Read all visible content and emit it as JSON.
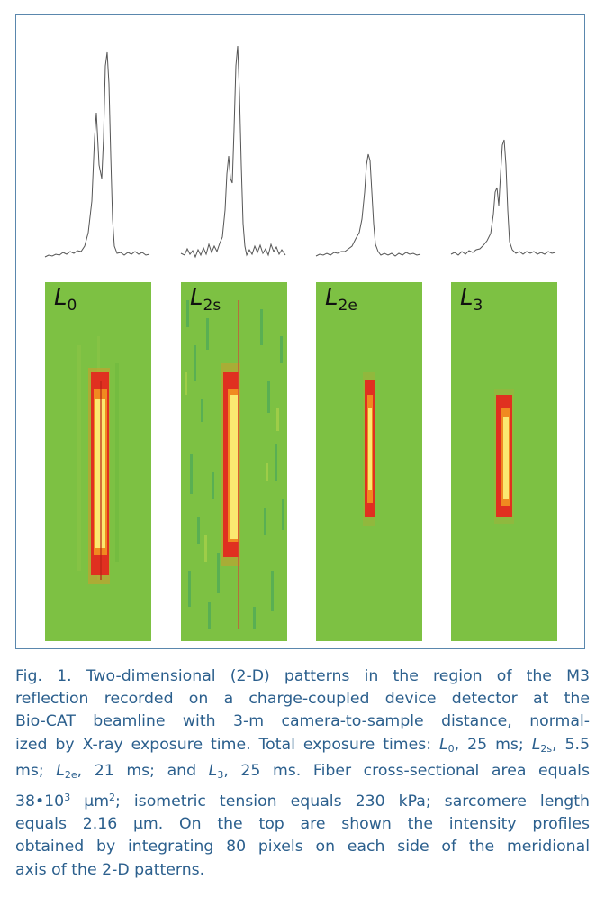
{
  "figure": {
    "panels": [
      {
        "id": "L0",
        "label": "L",
        "subscript": "0"
      },
      {
        "id": "L2s",
        "label": "L",
        "subscript": "2s"
      },
      {
        "id": "L2e",
        "label": "L",
        "subscript": "2e"
      },
      {
        "id": "L3",
        "label": "L",
        "subscript": "3"
      }
    ],
    "colors": {
      "background": "#7dc143",
      "frame": "#5a87ad",
      "caption_text": "#2b5f8d",
      "profile_line": "#555555",
      "hot_red": "#e03020",
      "hot_orange": "#f08a20",
      "hot_yellow": "#fbe870"
    }
  },
  "caption": {
    "lines": [
      [
        {
          "t": "Fig. 1. Two-dimensional (2-D) patterns in the region of the M3"
        }
      ],
      [
        {
          "t": "reflection recorded on a charge-coupled device detector at the"
        }
      ],
      [
        {
          "t": "Bio-CAT beamline with 3-m camera-to-sample distance, normal-"
        }
      ],
      [
        {
          "t": "ized by X-ray exposure time. Total exposure times: "
        },
        {
          "t": "L",
          "s": "i"
        },
        {
          "t": "0",
          "s": "sub"
        },
        {
          "t": ", 25 ms; "
        },
        {
          "t": "L",
          "s": "i"
        },
        {
          "t": "2s",
          "s": "sub"
        },
        {
          "t": ", 5.5"
        }
      ],
      [
        {
          "t": "ms; "
        },
        {
          "t": "L",
          "s": "i"
        },
        {
          "t": "2e",
          "s": "sub"
        },
        {
          "t": ", 21 ms; and "
        },
        {
          "t": "L",
          "s": "i"
        },
        {
          "t": "3",
          "s": "sub"
        },
        {
          "t": ", 25 ms. Fiber cross-sectional area equals"
        }
      ],
      [
        {
          "t": "38•10"
        },
        {
          "t": "3",
          "s": "sup"
        },
        {
          "t": " µm"
        },
        {
          "t": "2",
          "s": "sup"
        },
        {
          "t": "; isometric tension equals 230 kPa; sarcomere length"
        }
      ],
      [
        {
          "t": "equals 2.16 µm.  On the top are shown the intensity profiles"
        }
      ],
      [
        {
          "t": "obtained by integrating 80 pixels on each side of the meridional"
        }
      ],
      [
        {
          "t": "axis of the 2-D patterns."
        }
      ]
    ]
  }
}
